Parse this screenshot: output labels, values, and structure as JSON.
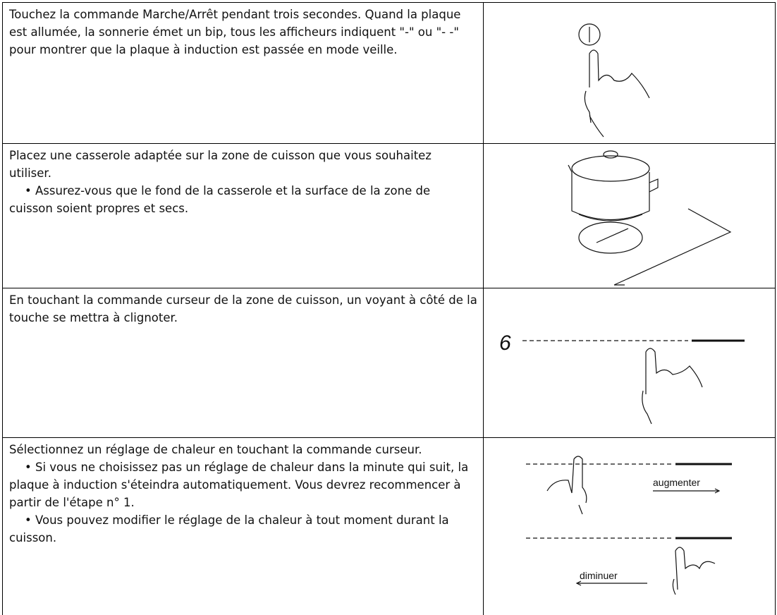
{
  "rows": [
    {
      "paragraphs": [
        "Touchez la commande Marche/Arrêt pendant trois secondes. Quand la plaque est allumée, la sonnerie émet un bip, tous les afficheurs indiquent \"-\" ou \"- -\" pour montrer que la plaque à induction est passée en mode veille."
      ]
    },
    {
      "paragraphs": [
        "Placez une casserole adaptée sur la zone de cuisson que vous souhaitez utiliser.",
        "• Assurez-vous que le fond de la casserole et la surface de la zone de cuisson soient propres et secs."
      ]
    },
    {
      "paragraphs": [
        "En touchant la commande curseur de la zone de cuisson, un voyant à côté de la touche se mettra à clignoter."
      ],
      "display": "6"
    },
    {
      "paragraphs": [
        "Sélectionnez un réglage de chaleur en touchant la commande curseur.",
        "• Si vous ne choisissez pas un réglage de chaleur dans la minute qui suit, la plaque à induction s'éteindra automatiquement. Vous devrez recommencer à partir de l'étape n° 1.",
        "• Vous pouvez modifier le réglage de la chaleur à tout moment durant la cuisson."
      ],
      "increase_label": "augmenter",
      "decrease_label": "diminuer"
    }
  ]
}
